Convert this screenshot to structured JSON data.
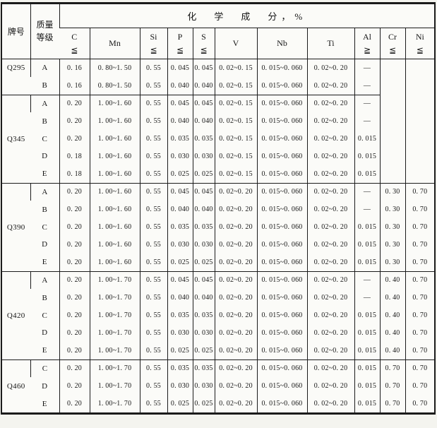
{
  "table": {
    "title": "化　学　成　分，%",
    "corner": {
      "grade": "牌号",
      "quality": [
        "质量",
        "等级"
      ]
    },
    "columns": [
      {
        "key": "c",
        "symbol": "C",
        "limit": "≦"
      },
      {
        "key": "mn",
        "symbol": "Mn",
        "limit": ""
      },
      {
        "key": "si",
        "symbol": "Si",
        "limit": "≦"
      },
      {
        "key": "p",
        "symbol": "P",
        "limit": "≦"
      },
      {
        "key": "s",
        "symbol": "S",
        "limit": "≦"
      },
      {
        "key": "v",
        "symbol": "V",
        "limit": ""
      },
      {
        "key": "nb",
        "symbol": "Nb",
        "limit": ""
      },
      {
        "key": "ti",
        "symbol": "Ti",
        "limit": ""
      },
      {
        "key": "al",
        "symbol": "Al",
        "limit": "≧"
      },
      {
        "key": "cr",
        "symbol": "Cr",
        "limit": "≦"
      },
      {
        "key": "ni",
        "symbol": "Ni",
        "limit": "≦"
      }
    ],
    "sections": [
      {
        "grade": "Q295",
        "grade_valign": "top",
        "crni_merged_rows": 7,
        "rows": [
          {
            "level": "A",
            "c": "0. 16",
            "mn": "0. 80~1. 50",
            "si": "0. 55",
            "p": "0. 045",
            "s": "0. 045",
            "v": "0. 02~0. 15",
            "nb": "0. 015~0. 060",
            "ti": "0. 02~0. 20",
            "al": "—"
          },
          {
            "level": "B",
            "c": "0. 16",
            "mn": "0. 80~1. 50",
            "si": "0. 55",
            "p": "0. 040",
            "s": "0. 040",
            "v": "0. 02~0. 15",
            "nb": "0. 015~0. 060",
            "ti": "0. 02~0. 20",
            "al": "—"
          }
        ]
      },
      {
        "grade": "Q345",
        "crni_skip": true,
        "rows": [
          {
            "level": "A",
            "c": "0. 20",
            "mn": "1. 00~1. 60",
            "si": "0. 55",
            "p": "0. 045",
            "s": "0. 045",
            "v": "0. 02~0. 15",
            "nb": "0. 015~0. 060",
            "ti": "0. 02~0. 20",
            "al": "—"
          },
          {
            "level": "B",
            "c": "0. 20",
            "mn": "1. 00~1. 60",
            "si": "0. 55",
            "p": "0. 040",
            "s": "0. 040",
            "v": "0. 02~0. 15",
            "nb": "0. 015~0. 060",
            "ti": "0. 02~0. 20",
            "al": "—"
          },
          {
            "level": "C",
            "c": "0. 20",
            "mn": "1. 00~1. 60",
            "si": "0. 55",
            "p": "0. 035",
            "s": "0. 035",
            "v": "0. 02~0. 15",
            "nb": "0. 015~0. 060",
            "ti": "0. 02~0. 20",
            "al": "0. 015"
          },
          {
            "level": "D",
            "c": "0. 18",
            "mn": "1. 00~1. 60",
            "si": "0. 55",
            "p": "0. 030",
            "s": "0. 030",
            "v": "0. 02~0. 15",
            "nb": "0. 015~0. 060",
            "ti": "0. 02~0. 20",
            "al": "0. 015"
          },
          {
            "level": "E",
            "c": "0. 18",
            "mn": "1. 00~1. 60",
            "si": "0. 55",
            "p": "0. 025",
            "s": "0. 025",
            "v": "0. 02~0. 15",
            "nb": "0. 015~0. 060",
            "ti": "0. 02~0. 20",
            "al": "0. 015"
          }
        ]
      },
      {
        "grade": "Q390",
        "rows": [
          {
            "level": "A",
            "c": "0. 20",
            "mn": "1. 00~1. 60",
            "si": "0. 55",
            "p": "0. 045",
            "s": "0. 045",
            "v": "0. 02~0. 20",
            "nb": "0. 015~0. 060",
            "ti": "0. 02~0. 20",
            "al": "—",
            "cr": "0. 30",
            "ni": "0. 70"
          },
          {
            "level": "B",
            "c": "0. 20",
            "mn": "1. 00~1. 60",
            "si": "0. 55",
            "p": "0. 040",
            "s": "0. 040",
            "v": "0. 02~0. 20",
            "nb": "0. 015~0. 060",
            "ti": "0. 02~0. 20",
            "al": "—",
            "cr": "0. 30",
            "ni": "0. 70"
          },
          {
            "level": "C",
            "c": "0. 20",
            "mn": "1. 00~1. 60",
            "si": "0. 55",
            "p": "0. 035",
            "s": "0. 035",
            "v": "0. 02~0. 20",
            "nb": "0. 015~0. 060",
            "ti": "0. 02~0. 20",
            "al": "0. 015",
            "cr": "0. 30",
            "ni": "0. 70"
          },
          {
            "level": "D",
            "c": "0. 20",
            "mn": "1. 00~1. 60",
            "si": "0. 55",
            "p": "0. 030",
            "s": "0. 030",
            "v": "0. 02~0. 20",
            "nb": "0. 015~0. 060",
            "ti": "0. 02~0. 20",
            "al": "0. 015",
            "cr": "0. 30",
            "ni": "0. 70"
          },
          {
            "level": "E",
            "c": "0. 20",
            "mn": "1. 00~1. 60",
            "si": "0. 55",
            "p": "0. 025",
            "s": "0. 025",
            "v": "0. 02~0. 20",
            "nb": "0. 015~0. 060",
            "ti": "0. 02~0. 20",
            "al": "0. 015",
            "cr": "0. 30",
            "ni": "0. 70"
          }
        ]
      },
      {
        "grade": "Q420",
        "rows": [
          {
            "level": "A",
            "c": "0. 20",
            "mn": "1. 00~1. 70",
            "si": "0. 55",
            "p": "0. 045",
            "s": "0. 045",
            "v": "0. 02~0. 20",
            "nb": "0. 015~0. 060",
            "ti": "0. 02~0. 20",
            "al": "—",
            "cr": "0. 40",
            "ni": "0. 70"
          },
          {
            "level": "B",
            "c": "0. 20",
            "mn": "1. 00~1. 70",
            "si": "0. 55",
            "p": "0. 040",
            "s": "0. 040",
            "v": "0. 02~0. 20",
            "nb": "0. 015~0. 060",
            "ti": "0. 02~0. 20",
            "al": "—",
            "cr": "0. 40",
            "ni": "0. 70"
          },
          {
            "level": "C",
            "c": "0. 20",
            "mn": "1. 00~1. 70",
            "si": "0. 55",
            "p": "0. 035",
            "s": "0. 035",
            "v": "0. 02~0. 20",
            "nb": "0. 015~0. 060",
            "ti": "0. 02~0. 20",
            "al": "0. 015",
            "cr": "0. 40",
            "ni": "0. 70"
          },
          {
            "level": "D",
            "c": "0. 20",
            "mn": "1. 00~1. 70",
            "si": "0. 55",
            "p": "0. 030",
            "s": "0. 030",
            "v": "0. 02~0. 20",
            "nb": "0. 015~0. 060",
            "ti": "0. 02~0. 20",
            "al": "0. 015",
            "cr": "0. 40",
            "ni": "0. 70"
          },
          {
            "level": "E",
            "c": "0. 20",
            "mn": "1. 00~1. 70",
            "si": "0. 55",
            "p": "0. 025",
            "s": "0. 025",
            "v": "0. 02~0. 20",
            "nb": "0. 015~0. 060",
            "ti": "0. 02~0. 20",
            "al": "0. 015",
            "cr": "0. 40",
            "ni": "0. 70"
          }
        ]
      },
      {
        "grade": "Q460",
        "rows": [
          {
            "level": "C",
            "c": "0. 20",
            "mn": "1. 00~1. 70",
            "si": "0. 55",
            "p": "0. 035",
            "s": "0. 035",
            "v": "0. 02~0. 20",
            "nb": "0. 015~0. 060",
            "ti": "0. 02~0. 20",
            "al": "0. 015",
            "cr": "0. 70",
            "ni": "0. 70"
          },
          {
            "level": "D",
            "c": "0. 20",
            "mn": "1. 00~1. 70",
            "si": "0. 55",
            "p": "0. 030",
            "s": "0. 030",
            "v": "0. 02~0. 20",
            "nb": "0. 015~0. 060",
            "ti": "0. 02~0. 20",
            "al": "0. 015",
            "cr": "0. 70",
            "ni": "0. 70"
          },
          {
            "level": "E",
            "c": "0. 20",
            "mn": "1. 00~1. 70",
            "si": "0. 55",
            "p": "0. 025",
            "s": "0. 025",
            "v": "0. 02~0. 20",
            "nb": "0. 015~0. 060",
            "ti": "0. 02~0. 20",
            "al": "0. 015",
            "cr": "0. 70",
            "ni": "0. 70"
          }
        ]
      }
    ]
  }
}
